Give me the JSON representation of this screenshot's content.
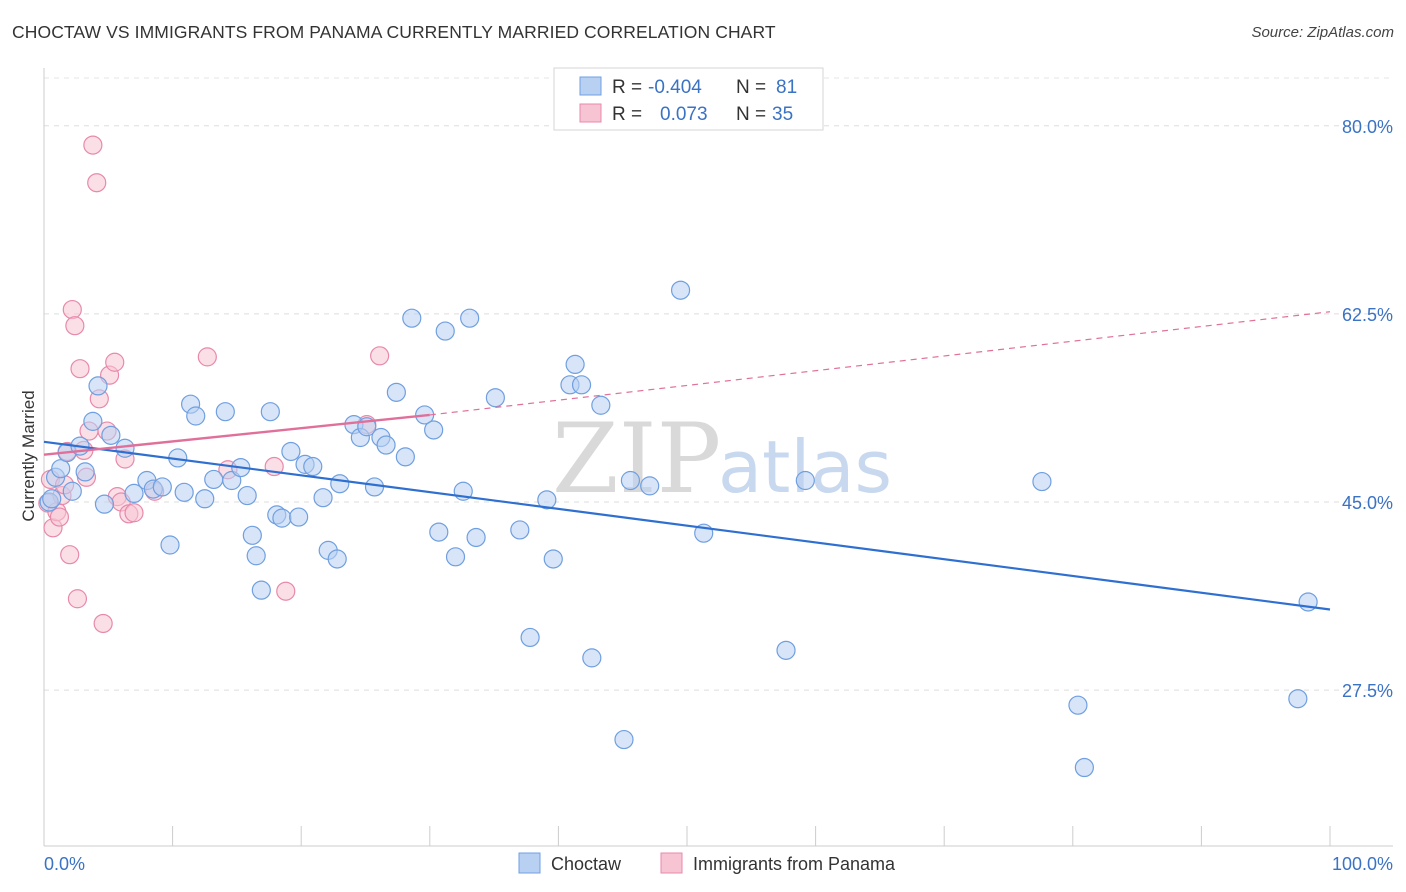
{
  "header": {
    "title": "CHOCTAW VS IMMIGRANTS FROM PANAMA CURRENTLY MARRIED CORRELATION CHART",
    "source": "Source: ZipAtlas.com"
  },
  "watermark": {
    "zip": "ZIP",
    "atlas": "atlas"
  },
  "legend": {
    "rows": [
      {
        "r_label": "R =",
        "r_value": "-0.404",
        "n_label": "N =",
        "n_value": "81"
      },
      {
        "r_label": "R =",
        "r_value": "0.073",
        "n_label": "N =",
        "n_value": "35"
      }
    ]
  },
  "bottom_legend": [
    "Choctaw",
    "Immigrants from Panama"
  ],
  "chart_data": {
    "type": "scatter",
    "ylabel": "Currently Married",
    "xlim": [
      0,
      100
    ],
    "ylim": [
      13,
      85
    ],
    "y_ticks": [
      {
        "value": 80.0,
        "label": "80.0%"
      },
      {
        "value": 62.5,
        "label": "62.5%"
      },
      {
        "value": 45.0,
        "label": "45.0%"
      },
      {
        "value": 27.5,
        "label": "27.5%"
      }
    ],
    "x_ticks": [
      {
        "value": 0,
        "label": "0.0%"
      },
      {
        "value": 100,
        "label": "100.0%"
      }
    ],
    "grid": "horizontal dashed",
    "legend_position": "top-center",
    "series": [
      {
        "name": "Choctaw",
        "color": "#6f9fe0",
        "fill": "#b8d0f2",
        "trend": {
          "x0": 0,
          "y0": 50.6,
          "x1": 100,
          "y1": 35.0,
          "color": "#2f6fd0",
          "dashed_extension": false
        },
        "points": [
          [
            0.4,
            45.0
          ],
          [
            0.9,
            47.3
          ],
          [
            1.3,
            48.1
          ],
          [
            1.8,
            49.6
          ],
          [
            2.2,
            46.0
          ],
          [
            2.8,
            50.2
          ],
          [
            3.2,
            47.8
          ],
          [
            3.8,
            52.5
          ],
          [
            4.2,
            55.8
          ],
          [
            4.7,
            44.8
          ],
          [
            5.2,
            51.2
          ],
          [
            6.3,
            50.0
          ],
          [
            7.0,
            45.8
          ],
          [
            8.0,
            47.0
          ],
          [
            8.5,
            46.2
          ],
          [
            9.2,
            46.4
          ],
          [
            9.8,
            41.0
          ],
          [
            10.4,
            49.1
          ],
          [
            10.9,
            45.9
          ],
          [
            11.4,
            54.1
          ],
          [
            11.8,
            53.0
          ],
          [
            12.5,
            45.3
          ],
          [
            13.2,
            47.1
          ],
          [
            14.1,
            53.4
          ],
          [
            14.6,
            47.0
          ],
          [
            15.3,
            48.2
          ],
          [
            15.8,
            45.6
          ],
          [
            16.2,
            41.9
          ],
          [
            16.5,
            40.0
          ],
          [
            16.9,
            36.8
          ],
          [
            17.6,
            53.4
          ],
          [
            18.1,
            43.8
          ],
          [
            18.5,
            43.5
          ],
          [
            19.2,
            49.7
          ],
          [
            19.8,
            43.6
          ],
          [
            20.3,
            48.5
          ],
          [
            20.9,
            48.3
          ],
          [
            21.7,
            45.4
          ],
          [
            22.1,
            40.5
          ],
          [
            22.8,
            39.7
          ],
          [
            23.0,
            46.7
          ],
          [
            24.1,
            52.2
          ],
          [
            24.6,
            51.0
          ],
          [
            25.1,
            52.0
          ],
          [
            25.7,
            46.4
          ],
          [
            26.2,
            51.0
          ],
          [
            26.6,
            50.3
          ],
          [
            27.4,
            55.2
          ],
          [
            28.1,
            49.2
          ],
          [
            28.6,
            62.1
          ],
          [
            29.6,
            53.1
          ],
          [
            30.3,
            51.7
          ],
          [
            30.7,
            42.2
          ],
          [
            31.2,
            60.9
          ],
          [
            32.0,
            39.9
          ],
          [
            32.6,
            46.0
          ],
          [
            33.1,
            62.1
          ],
          [
            33.6,
            41.7
          ],
          [
            35.1,
            54.7
          ],
          [
            37.0,
            42.4
          ],
          [
            37.8,
            32.4
          ],
          [
            39.1,
            45.2
          ],
          [
            39.6,
            39.7
          ],
          [
            40.9,
            55.9
          ],
          [
            41.3,
            57.8
          ],
          [
            41.8,
            55.9
          ],
          [
            42.6,
            30.5
          ],
          [
            43.3,
            54.0
          ],
          [
            45.1,
            22.9
          ],
          [
            45.6,
            47.0
          ],
          [
            47.1,
            46.5
          ],
          [
            49.5,
            64.7
          ],
          [
            51.3,
            42.1
          ],
          [
            57.7,
            31.2
          ],
          [
            59.2,
            47.0
          ],
          [
            77.6,
            46.9
          ],
          [
            80.4,
            26.1
          ],
          [
            80.9,
            20.3
          ],
          [
            97.5,
            26.7
          ],
          [
            98.3,
            35.7
          ],
          [
            0.6,
            45.3
          ]
        ]
      },
      {
        "name": "Immigrants from Panama",
        "color": "#e889aa",
        "fill": "#f7c4d4",
        "trend": {
          "x0": 0,
          "y0": 49.4,
          "x1": 30,
          "y1": 53.1,
          "color": "#e0709a",
          "dashed_to": {
            "x": 100,
            "y": 62.7
          }
        },
        "points": [
          [
            0.3,
            44.9
          ],
          [
            0.5,
            47.1
          ],
          [
            0.7,
            42.6
          ],
          [
            1.0,
            44.1
          ],
          [
            1.2,
            43.6
          ],
          [
            1.4,
            45.6
          ],
          [
            1.6,
            46.6
          ],
          [
            1.8,
            49.7
          ],
          [
            2.0,
            40.1
          ],
          [
            2.2,
            62.9
          ],
          [
            2.4,
            61.4
          ],
          [
            2.6,
            36.0
          ],
          [
            2.8,
            57.4
          ],
          [
            3.1,
            49.8
          ],
          [
            3.3,
            47.3
          ],
          [
            3.5,
            51.6
          ],
          [
            3.8,
            78.2
          ],
          [
            4.1,
            74.7
          ],
          [
            4.3,
            54.6
          ],
          [
            4.6,
            33.7
          ],
          [
            4.9,
            51.6
          ],
          [
            5.1,
            56.8
          ],
          [
            5.5,
            58.0
          ],
          [
            5.7,
            45.5
          ],
          [
            6.0,
            45.0
          ],
          [
            6.3,
            49.0
          ],
          [
            6.6,
            43.9
          ],
          [
            7.0,
            44.0
          ],
          [
            8.6,
            46.0
          ],
          [
            12.7,
            58.5
          ],
          [
            14.3,
            48.0
          ],
          [
            17.9,
            48.3
          ],
          [
            18.8,
            36.7
          ],
          [
            25.1,
            52.2
          ],
          [
            26.1,
            58.6
          ]
        ]
      }
    ]
  }
}
